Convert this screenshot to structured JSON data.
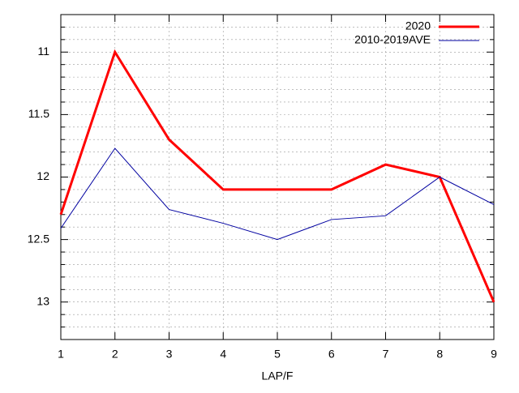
{
  "chart_data": {
    "type": "line",
    "xlabel": "LAP/F",
    "x": [
      1,
      2,
      3,
      4,
      5,
      6,
      7,
      8,
      9
    ],
    "series": [
      {
        "name": "2020",
        "color": "#ff0000",
        "values": [
          12.3,
          11.0,
          11.7,
          12.1,
          12.1,
          12.1,
          11.9,
          12.0,
          13.0
        ]
      },
      {
        "name": "2010-2019AVE",
        "color": "#0000a0",
        "values": [
          12.41,
          11.77,
          12.26,
          12.37,
          12.5,
          12.34,
          12.31,
          12.0,
          12.22
        ]
      }
    ],
    "xlim": [
      1,
      9
    ],
    "xticks": [
      1,
      2,
      3,
      4,
      5,
      6,
      7,
      8,
      9
    ],
    "ylim": [
      13.3,
      10.7
    ],
    "yticks": [
      11,
      11.5,
      12,
      12.5,
      13
    ],
    "yminorticks": [
      10.8,
      10.9,
      11.1,
      11.2,
      11.3,
      11.4,
      11.6,
      11.7,
      11.8,
      11.9,
      12.1,
      12.2,
      12.3,
      12.4,
      12.6,
      12.7,
      12.8,
      12.9,
      13.1,
      13.2
    ],
    "grid": true,
    "legend": "top-right"
  }
}
